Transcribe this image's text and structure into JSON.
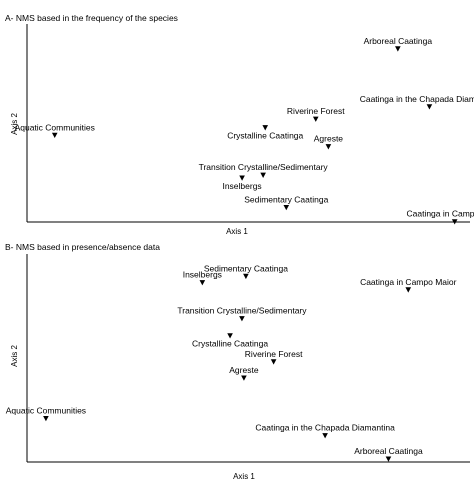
{
  "chart_data": [
    {
      "type": "scatter",
      "title": "A- NMS based in the frequency of the species",
      "xlabel": "Axis 1",
      "ylabel": "Axis 2",
      "xlim": [
        0,
        100
      ],
      "ylim": [
        0,
        100
      ],
      "grid": false,
      "marker": "triangle-down",
      "points": [
        {
          "label": "Arboreal Caatinga",
          "x": 85.0,
          "y": 88.0,
          "label_pos": "above"
        },
        {
          "label": "Caatinga in the Chapada Diamantina",
          "x": 92.5,
          "y": 57.5,
          "label_pos": "above"
        },
        {
          "label": "Riverine Forest",
          "x": 65.5,
          "y": 51.0,
          "label_pos": "above"
        },
        {
          "label": "Crystalline Caatinga",
          "x": 53.5,
          "y": 46.5,
          "label_pos": "below"
        },
        {
          "label": "Agreste",
          "x": 68.5,
          "y": 36.5,
          "label_pos": "above"
        },
        {
          "label": "Aquatic Communities",
          "x": 3.5,
          "y": 42.5,
          "label_pos": "above"
        },
        {
          "label": "Transition Crystalline/Sedimentary",
          "x": 53.0,
          "y": 21.5,
          "label_pos": "above"
        },
        {
          "label": "Inselbergs",
          "x": 48.0,
          "y": 20.0,
          "label_pos": "below"
        },
        {
          "label": "Sedimentary Caatinga",
          "x": 58.5,
          "y": 4.5,
          "label_pos": "above"
        },
        {
          "label": "Caatinga in Campo Maior",
          "x": 98.5,
          "y": -3.0,
          "label_pos": "above"
        }
      ]
    },
    {
      "type": "scatter",
      "title": "B- NMS based in presence/absence data",
      "xlabel": "Axis 1",
      "ylabel": "Axis 2",
      "xlim": [
        0,
        100
      ],
      "ylim": [
        0,
        100
      ],
      "grid": false,
      "marker": "triangle-down",
      "points": [
        {
          "label": "Inselbergs",
          "x": 41.5,
          "y": 93.0,
          "label_pos": "above"
        },
        {
          "label": "Sedimentary Caatinga",
          "x": 52.5,
          "y": 96.5,
          "label_pos": "above"
        },
        {
          "label": "Caatinga in Campo Maior",
          "x": 93.5,
          "y": 89.0,
          "label_pos": "above"
        },
        {
          "label": "Transition Crystalline/Sedimentary",
          "x": 51.5,
          "y": 73.0,
          "label_pos": "above"
        },
        {
          "label": "Crystalline Caatinga",
          "x": 48.5,
          "y": 63.5,
          "label_pos": "below"
        },
        {
          "label": "Riverine Forest",
          "x": 59.5,
          "y": 49.0,
          "label_pos": "above"
        },
        {
          "label": "Agreste",
          "x": 52.0,
          "y": 40.0,
          "label_pos": "above"
        },
        {
          "label": "Aquatic Communities",
          "x": 2.0,
          "y": 17.5,
          "label_pos": "above"
        },
        {
          "label": "Caatinga in the Chapada Diamantina",
          "x": 72.5,
          "y": 8.0,
          "label_pos": "above"
        },
        {
          "label": "Arboreal Caatinga",
          "x": 88.5,
          "y": -5.0,
          "label_pos": "above"
        }
      ]
    }
  ]
}
